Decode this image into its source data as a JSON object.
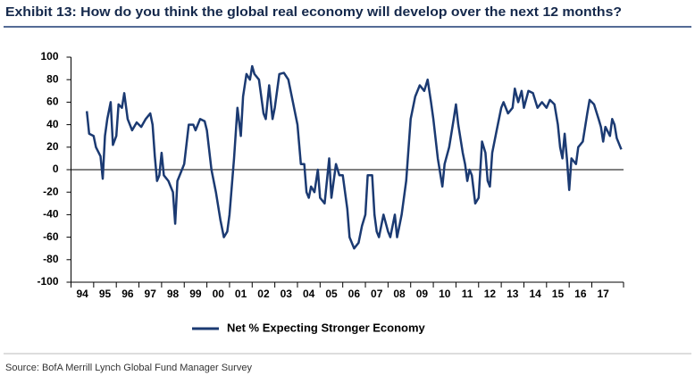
{
  "chart_data": {
    "type": "line",
    "title": "Exhibit 13: How do you think the global real economy will develop over the next 12 months?",
    "source": "Source:  BofA Merrill Lynch Global Fund Manager Survey",
    "x": [
      1994.7,
      1994.8,
      1995.0,
      1995.1,
      1995.3,
      1995.4,
      1995.5,
      1995.6,
      1995.75,
      1995.85,
      1996.0,
      1996.1,
      1996.25,
      1996.35,
      1996.5,
      1996.7,
      1996.9,
      1997.1,
      1997.3,
      1997.5,
      1997.6,
      1997.7,
      1997.8,
      1997.9,
      1998.0,
      1998.1,
      1998.3,
      1998.5,
      1998.6,
      1998.7,
      1998.9,
      1999.0,
      1999.2,
      1999.4,
      1999.5,
      1999.7,
      1999.9,
      2000.0,
      2000.2,
      2000.4,
      2000.6,
      2000.75,
      2000.9,
      2001.0,
      2001.2,
      2001.35,
      2001.5,
      2001.6,
      2001.75,
      2001.9,
      2002.0,
      2002.1,
      2002.3,
      2002.5,
      2002.6,
      2002.75,
      2002.9,
      2003.0,
      2003.2,
      2003.4,
      2003.6,
      2003.8,
      2004.0,
      2004.15,
      2004.3,
      2004.4,
      2004.5,
      2004.6,
      2004.75,
      2004.9,
      2005.0,
      2005.2,
      2005.4,
      2005.5,
      2005.7,
      2005.85,
      2006.0,
      2006.2,
      2006.3,
      2006.5,
      2006.7,
      2006.85,
      2007.0,
      2007.1,
      2007.3,
      2007.4,
      2007.5,
      2007.6,
      2007.8,
      2008.0,
      2008.1,
      2008.3,
      2008.4,
      2008.5,
      2008.6,
      2008.8,
      2009.0,
      2009.2,
      2009.4,
      2009.6,
      2009.75,
      2009.9,
      2010.0,
      2010.2,
      2010.4,
      2010.5,
      2010.7,
      2010.9,
      2011.0,
      2011.1,
      2011.3,
      2011.4,
      2011.5,
      2011.6,
      2011.7,
      2011.85,
      2012.0,
      2012.15,
      2012.3,
      2012.4,
      2012.5,
      2012.6,
      2012.8,
      2013.0,
      2013.1,
      2013.3,
      2013.5,
      2013.6,
      2013.75,
      2013.9,
      2014.0,
      2014.2,
      2014.4,
      2014.6,
      2014.8,
      2015.0,
      2015.15,
      2015.35,
      2015.5,
      2015.6,
      2015.7,
      2015.8,
      2015.9,
      2016.0,
      2016.1,
      2016.3,
      2016.4,
      2016.6,
      2016.8,
      2016.9,
      2017.1,
      2017.3,
      2017.4,
      2017.5,
      2017.6,
      2017.8,
      2017.9,
      2018.0,
      2018.1,
      2018.3
    ],
    "series": [
      {
        "name": "Net % Expecting Stronger Economy",
        "color": "#1b3a72",
        "values": [
          52,
          32,
          30,
          20,
          12,
          -8,
          30,
          45,
          60,
          22,
          30,
          58,
          55,
          68,
          45,
          35,
          42,
          38,
          45,
          50,
          40,
          12,
          -10,
          -5,
          15,
          -5,
          -10,
          -20,
          -48,
          -10,
          0,
          5,
          40,
          40,
          35,
          45,
          43,
          35,
          0,
          -20,
          -45,
          -60,
          -55,
          -40,
          10,
          55,
          30,
          65,
          85,
          80,
          92,
          85,
          80,
          50,
          45,
          75,
          45,
          55,
          85,
          86,
          80,
          60,
          40,
          5,
          5,
          -20,
          -25,
          -15,
          -20,
          0,
          -25,
          -30,
          10,
          -25,
          5,
          -5,
          -5,
          -35,
          -60,
          -70,
          -65,
          -50,
          -40,
          -5,
          -5,
          -40,
          -55,
          -60,
          -40,
          -55,
          -60,
          -40,
          -60,
          -50,
          -40,
          -10,
          45,
          65,
          75,
          70,
          80,
          60,
          45,
          10,
          -15,
          5,
          20,
          45,
          58,
          40,
          15,
          5,
          -10,
          0,
          -5,
          -30,
          -25,
          25,
          15,
          -10,
          -15,
          15,
          35,
          55,
          60,
          50,
          55,
          72,
          60,
          70,
          55,
          70,
          68,
          55,
          60,
          55,
          62,
          58,
          40,
          20,
          10,
          32,
          10,
          -18,
          10,
          5,
          20,
          25,
          50,
          62,
          58,
          45,
          38,
          25,
          38,
          30,
          45,
          40,
          28,
          18
        ]
      }
    ],
    "xlim": [
      1994,
      2018.4
    ],
    "xticks": [
      {
        "value": 1994,
        "label": "94"
      },
      {
        "value": 1995,
        "label": "95"
      },
      {
        "value": 1996,
        "label": "96"
      },
      {
        "value": 1997,
        "label": "97"
      },
      {
        "value": 1998,
        "label": "98"
      },
      {
        "value": 1999,
        "label": "99"
      },
      {
        "value": 2000,
        "label": "00"
      },
      {
        "value": 2001,
        "label": "01"
      },
      {
        "value": 2002,
        "label": "02"
      },
      {
        "value": 2003,
        "label": "03"
      },
      {
        "value": 2004,
        "label": "04"
      },
      {
        "value": 2005,
        "label": "05"
      },
      {
        "value": 2006,
        "label": "06"
      },
      {
        "value": 2007,
        "label": "07"
      },
      {
        "value": 2008,
        "label": "08"
      },
      {
        "value": 2009,
        "label": "09"
      },
      {
        "value": 2010,
        "label": "10"
      },
      {
        "value": 2011,
        "label": "11"
      },
      {
        "value": 2012,
        "label": "12"
      },
      {
        "value": 2013,
        "label": "13"
      },
      {
        "value": 2014,
        "label": "14"
      },
      {
        "value": 2015,
        "label": "15"
      },
      {
        "value": 2016,
        "label": "16"
      },
      {
        "value": 2017,
        "label": "17"
      }
    ],
    "ylim": [
      -100,
      100
    ],
    "yticks": [
      -100,
      -80,
      -60,
      -40,
      -20,
      0,
      20,
      40,
      60,
      80,
      100
    ],
    "zero_line": true
  }
}
